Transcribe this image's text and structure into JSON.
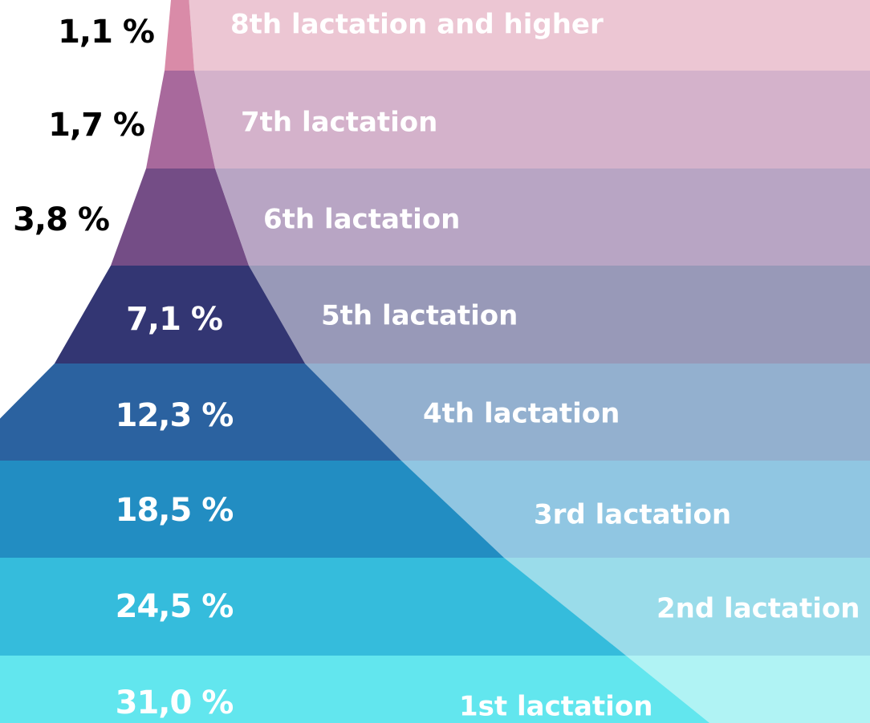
{
  "chart_data": {
    "type": "pyramid",
    "categories": [
      "8th lactation and higher",
      "7th lactation",
      "6th lactation",
      "5th lactation",
      "4th lactation",
      "3rd lactation",
      "2nd lactation",
      "1st lactation"
    ],
    "values": [
      1.1,
      1.7,
      3.8,
      7.1,
      12.3,
      18.5,
      24.5,
      31.0
    ],
    "value_labels": [
      "1,1 %",
      "1,7 %",
      "3,8 %",
      "7,1 %",
      "12,3 %",
      "18,5 %",
      "24,5 %",
      "31,0 %"
    ],
    "colors": [
      "#d98ba8",
      "#a8699c",
      "#744d86",
      "#333673",
      "#2b62a0",
      "#228dc2",
      "#35bcdc",
      "#62e6ee"
    ],
    "band_colors": [
      "#ecc6d3",
      "#d4b2cb",
      "#b8a5c4",
      "#9899b8",
      "#93b0cf",
      "#90c6e2",
      "#9adcea",
      "#b0f3f4"
    ]
  }
}
